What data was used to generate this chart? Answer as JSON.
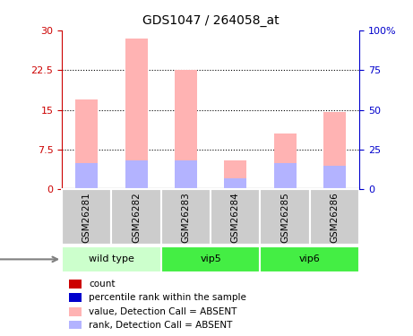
{
  "title": "GDS1047 / 264058_at",
  "samples": [
    "GSM26281",
    "GSM26282",
    "GSM26283",
    "GSM26284",
    "GSM26285",
    "GSM26286"
  ],
  "pink_bar_values": [
    17.0,
    28.5,
    22.5,
    5.5,
    10.5,
    14.5
  ],
  "blue_bar_values": [
    5.0,
    5.5,
    5.5,
    2.0,
    5.0,
    4.5
  ],
  "ylim_left": [
    0,
    30
  ],
  "ylim_right": [
    0,
    100
  ],
  "yticks_left": [
    0,
    7.5,
    15,
    22.5,
    30
  ],
  "yticks_right": [
    0,
    25,
    50,
    75,
    100
  ],
  "ytick_labels_left": [
    "0",
    "7.5",
    "15",
    "22.5",
    "30"
  ],
  "ytick_labels_right": [
    "0",
    "25",
    "50",
    "75",
    "100%"
  ],
  "left_axis_color": "#cc0000",
  "right_axis_color": "#0000cc",
  "pink_color": "#ffb3b3",
  "blue_color": "#b3b3ff",
  "label_box_color": "#cccccc",
  "group_configs": [
    {
      "indices": [
        0,
        1
      ],
      "name": "wild type",
      "color": "#ccffcc"
    },
    {
      "indices": [
        2,
        3
      ],
      "name": "vip5",
      "color": "#44ee44"
    },
    {
      "indices": [
        4,
        5
      ],
      "name": "vip6",
      "color": "#44ee44"
    }
  ],
  "legend_items": [
    {
      "color": "#cc0000",
      "label": "count"
    },
    {
      "color": "#0000cc",
      "label": "percentile rank within the sample"
    },
    {
      "color": "#ffb3b3",
      "label": "value, Detection Call = ABSENT"
    },
    {
      "color": "#b3b3ff",
      "label": "rank, Detection Call = ABSENT"
    }
  ]
}
